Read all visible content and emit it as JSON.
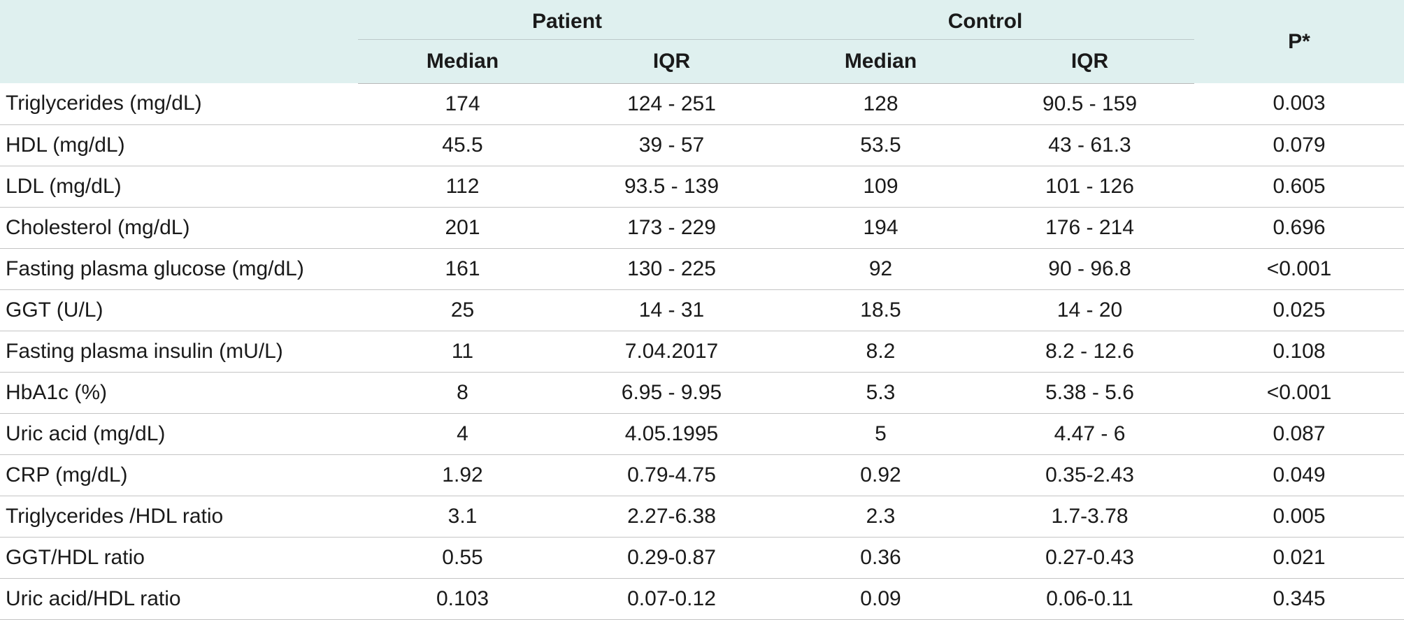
{
  "table": {
    "header": {
      "group_patient": "Patient",
      "group_control": "Control",
      "p": "P*",
      "sub": [
        "Median",
        "IQR",
        "Median",
        "IQR"
      ]
    },
    "rows": [
      [
        "Triglycerides (mg/dL)",
        "174",
        "124 - 251",
        "128",
        "90.5 - 159",
        "0.003"
      ],
      [
        "HDL (mg/dL)",
        "45.5",
        "39 - 57",
        "53.5",
        "43 - 61.3",
        "0.079"
      ],
      [
        "LDL (mg/dL)",
        "112",
        "93.5 - 139",
        "109",
        "101 - 126",
        "0.605"
      ],
      [
        "Cholesterol (mg/dL)",
        "201",
        "173 - 229",
        "194",
        "176 - 214",
        "0.696"
      ],
      [
        "Fasting plasma glucose (mg/dL)",
        "161",
        "130 - 225",
        "92",
        "90 - 96.8",
        "<0.001"
      ],
      [
        "GGT (U/L)",
        "25",
        "14 - 31",
        "18.5",
        "14 - 20",
        "0.025"
      ],
      [
        "Fasting plasma insulin (mU/L)",
        "11",
        "7.04.2017",
        "8.2",
        "8.2 - 12.6",
        "0.108"
      ],
      [
        "HbA1c (%)",
        "8",
        "6.95 - 9.95",
        "5.3",
        "5.38 - 5.6",
        "<0.001"
      ],
      [
        "Uric acid (mg/dL)",
        "4",
        "4.05.1995",
        "5",
        "4.47 - 6",
        "0.087"
      ],
      [
        "CRP (mg/dL)",
        "1.92",
        "0.79-4.75",
        "0.92",
        "0.35-2.43",
        "0.049"
      ],
      [
        "Triglycerides /HDL ratio",
        "3.1",
        "2.27-6.38",
        "2.3",
        "1.7-3.78",
        "0.005"
      ],
      [
        "GGT/HDL ratio",
        "0.55",
        "0.29-0.87",
        "0.36",
        "0.27-0.43",
        "0.021"
      ],
      [
        "Uric acid/HDL ratio",
        "0.103",
        "0.07-0.12",
        "0.09",
        "0.06-0.11",
        "0.345"
      ]
    ]
  }
}
